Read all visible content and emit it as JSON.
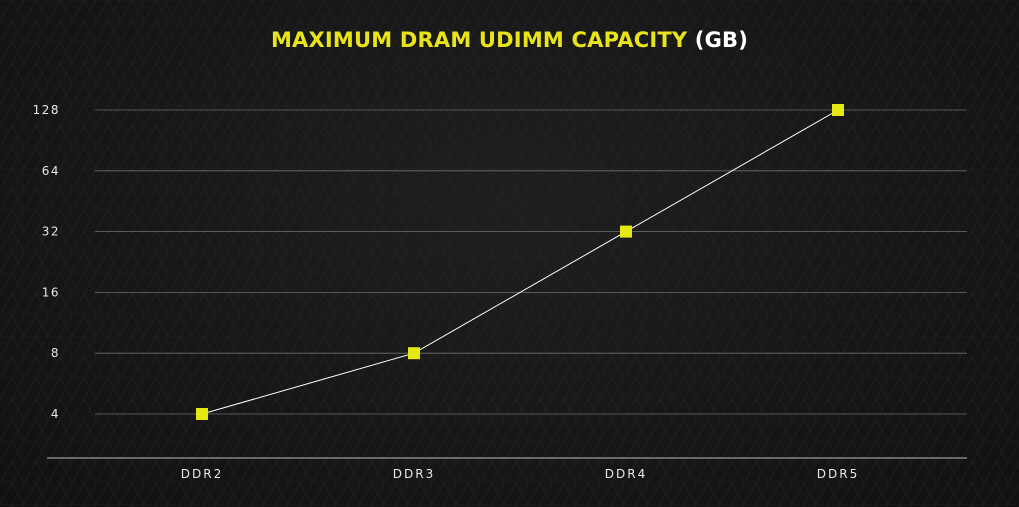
{
  "title": {
    "main": "MAXIMUM DRAM UDIMM CAPACITY",
    "unit": "(GB)"
  },
  "colors": {
    "background": "#151515",
    "title_accent": "#e9e41a",
    "title_unit": "#ffffff",
    "marker": "#e6e812",
    "line": "#ffffff",
    "grid": "#8a8a8a",
    "text": "#e6e6e6"
  },
  "chart_data": {
    "type": "line",
    "title": "MAXIMUM DRAM UDIMM CAPACITY (GB)",
    "xlabel": "",
    "ylabel": "",
    "categories": [
      "DDR2",
      "DDR3",
      "DDR4",
      "DDR5"
    ],
    "series": [
      {
        "values": [
          4,
          8,
          32,
          128
        ]
      }
    ],
    "y_scale": "log2",
    "y_ticks": [
      4,
      8,
      16,
      32,
      64,
      128
    ],
    "y_tick_labels": [
      "4",
      "8",
      "16",
      "32",
      "64",
      "128"
    ],
    "ylim": [
      4,
      128
    ],
    "grid": true,
    "marker": "square",
    "legend": "none"
  }
}
